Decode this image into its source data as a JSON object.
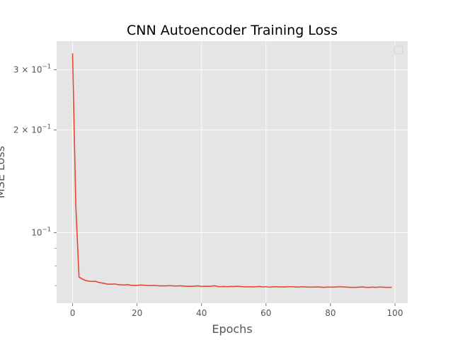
{
  "chart_data": {
    "type": "line",
    "title": "CNN Autoencoder Training Loss",
    "xlabel": "Epochs",
    "ylabel": "MSE Loss",
    "yscale": "log",
    "xlim": [
      -4.95,
      103.95
    ],
    "ylim": [
      0.0622,
      0.364
    ],
    "grid": true,
    "legend": "top-right",
    "x_ticks": [
      0,
      20,
      40,
      60,
      80,
      100
    ],
    "x_tick_labels": [
      "0",
      "20",
      "40",
      "60",
      "80",
      "100"
    ],
    "y_ticks": [
      0.1,
      0.2,
      0.3
    ],
    "y_minor_ticks": [
      0.07,
      0.08,
      0.09
    ],
    "y_tick_labels": [
      {
        "base": "10",
        "exp": "−1"
      },
      {
        "base": "10",
        "exp": "−1",
        "prefix": "2 × "
      },
      {
        "base": "10",
        "exp": "−1",
        "prefix": "3 × "
      }
    ],
    "series": [
      {
        "color": "#E24A33",
        "x": [
          0,
          1,
          2,
          3,
          4,
          5,
          6,
          7,
          8,
          9,
          10,
          11,
          12,
          13,
          14,
          15,
          16,
          17,
          18,
          19,
          20,
          21,
          22,
          23,
          24,
          25,
          26,
          27,
          28,
          29,
          30,
          31,
          32,
          33,
          34,
          35,
          36,
          37,
          38,
          39,
          40,
          41,
          42,
          43,
          44,
          45,
          46,
          47,
          48,
          49,
          50,
          51,
          52,
          53,
          54,
          55,
          56,
          57,
          58,
          59,
          60,
          61,
          62,
          63,
          64,
          65,
          66,
          67,
          68,
          69,
          70,
          71,
          72,
          73,
          74,
          75,
          76,
          77,
          78,
          79,
          80,
          81,
          82,
          83,
          84,
          85,
          86,
          87,
          88,
          89,
          90,
          91,
          92,
          93,
          94,
          95,
          96,
          97,
          98,
          99
        ],
        "values": [
          0.335,
          0.12,
          0.0742,
          0.0732,
          0.0725,
          0.0722,
          0.072,
          0.0721,
          0.0716,
          0.0713,
          0.071,
          0.0707,
          0.0707,
          0.0708,
          0.0705,
          0.0704,
          0.0703,
          0.0705,
          0.0702,
          0.0701,
          0.0701,
          0.0703,
          0.0702,
          0.0701,
          0.07,
          0.0701,
          0.07,
          0.0699,
          0.0699,
          0.0699,
          0.07,
          0.0699,
          0.0698,
          0.0699,
          0.0699,
          0.0697,
          0.0697,
          0.0697,
          0.0698,
          0.0699,
          0.0696,
          0.0697,
          0.0697,
          0.0697,
          0.07,
          0.0696,
          0.0695,
          0.0696,
          0.0695,
          0.0696,
          0.0696,
          0.0697,
          0.0696,
          0.0695,
          0.0694,
          0.0695,
          0.0694,
          0.0695,
          0.0696,
          0.0694,
          0.0695,
          0.0693,
          0.0694,
          0.0695,
          0.0694,
          0.0694,
          0.0694,
          0.0695,
          0.0695,
          0.0694,
          0.0693,
          0.0695,
          0.0694,
          0.0693,
          0.0693,
          0.0693,
          0.0694,
          0.0693,
          0.0692,
          0.0693,
          0.0693,
          0.0693,
          0.0694,
          0.0695,
          0.0694,
          0.0693,
          0.0692,
          0.0692,
          0.0692,
          0.0693,
          0.0694,
          0.0692,
          0.0692,
          0.0693,
          0.0692,
          0.0693,
          0.0693,
          0.0692,
          0.0692,
          0.0692
        ]
      }
    ]
  }
}
